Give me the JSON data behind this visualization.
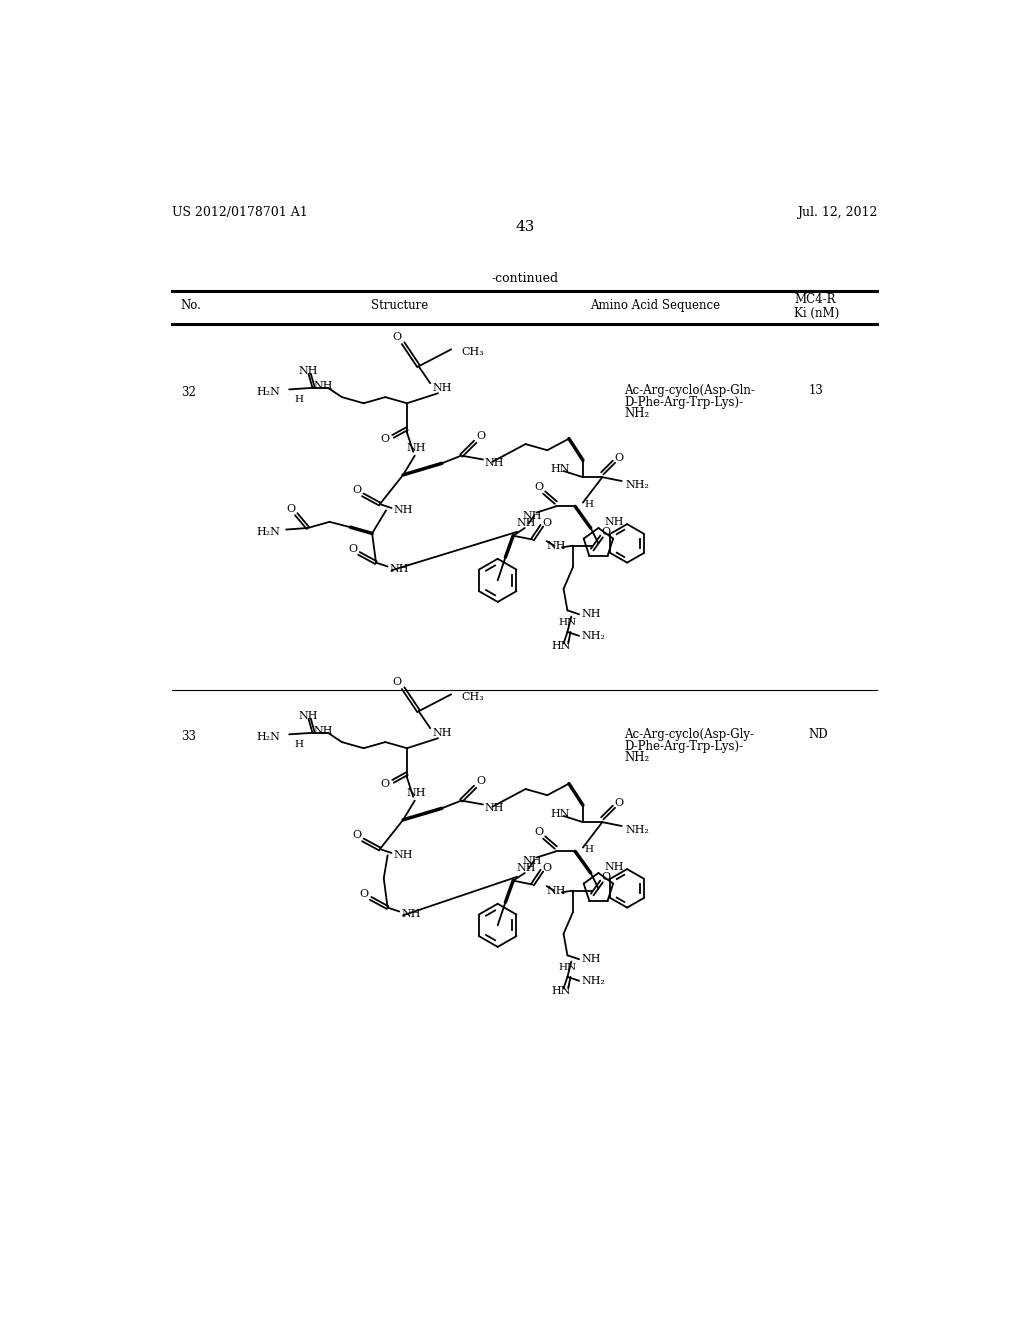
{
  "bg_color": "#ffffff",
  "top_left_text": "US 2012/0178701 A1",
  "top_right_text": "Jul. 12, 2012",
  "page_number": "43",
  "continued_text": "-continued",
  "row1_no": "32",
  "row1_seq_line1": "Ac-Arg-cyclo(Asp-Gln-",
  "row1_seq_line2": "D-Phe-Arg-Trp-Lys)-",
  "row1_seq_line3": "NH₂",
  "row1_ki": "13",
  "row2_no": "33",
  "row2_seq_line1": "Ac-Arg-cyclo(Asp-Gly-",
  "row2_seq_line2": "D-Phe-Arg-Trp-Lys)-",
  "row2_seq_line3": "NH₂",
  "row2_ki": "ND"
}
